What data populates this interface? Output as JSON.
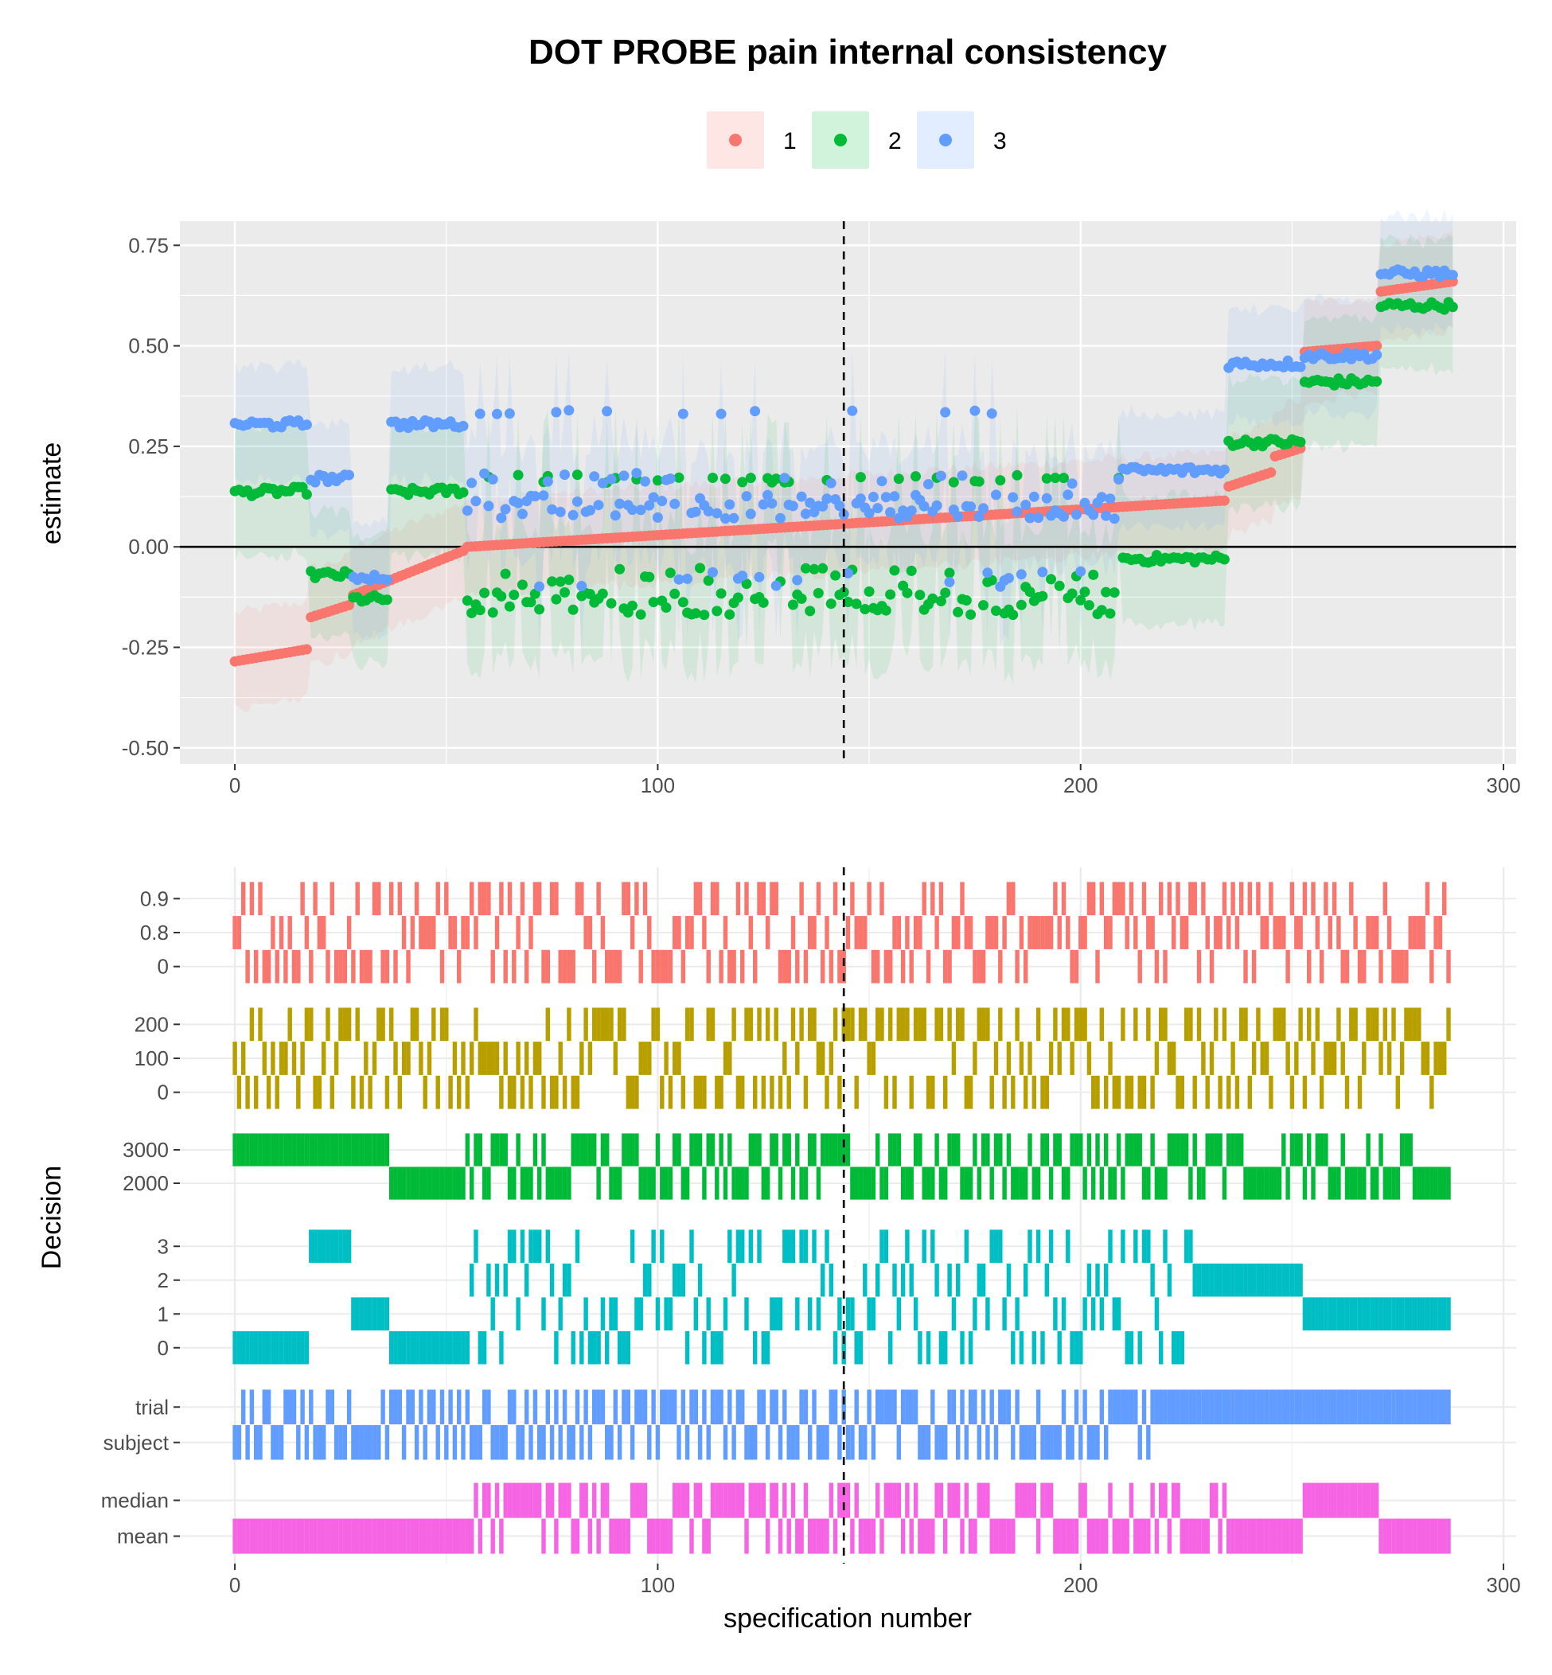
{
  "chart_data": [
    {
      "type": "scatter",
      "title": "DOT PROBE pain internal consistency",
      "xlabel": "",
      "ylabel": "estimate",
      "xlim": [
        -13,
        303
      ],
      "ylim": [
        -0.54,
        0.81
      ],
      "x_ticks": [
        0,
        100,
        200,
        300
      ],
      "y_ticks": [
        0.75,
        0.5,
        0.25,
        0.0,
        -0.25,
        -0.5
      ],
      "y_tick_labels": [
        "0.75",
        "0.50",
        "0.25",
        "0.00",
        "-0.25",
        "-0.50"
      ],
      "reference_lines": {
        "horizontal_y": 0,
        "vertical_dashed_x": 144
      },
      "grid": true,
      "legend": {
        "position": "top",
        "entries": [
          "1",
          "2",
          "3"
        ]
      },
      "colors": {
        "1": "#F8766D",
        "2": "#00BA38",
        "3": "#619CFF"
      },
      "n_specifications": 288,
      "series": [
        {
          "name": "1",
          "note_shape": "sorted ascending; segments",
          "segments": [
            {
              "x": [
                0,
                18
              ],
              "y": [
                -0.285,
                -0.255
              ]
            },
            {
              "x": [
                18,
                28
              ],
              "y": [
                -0.175,
                -0.145
              ]
            },
            {
              "x": [
                28,
                55
              ],
              "y": [
                -0.12,
                -0.01
              ]
            },
            {
              "x": [
                55,
                235
              ],
              "y": [
                0.0,
                0.115
              ]
            },
            {
              "x": [
                235,
                246
              ],
              "y": [
                0.15,
                0.185
              ]
            },
            {
              "x": [
                246,
                253
              ],
              "y": [
                0.225,
                0.245
              ]
            },
            {
              "x": [
                253,
                271
              ],
              "y": [
                0.485,
                0.5
              ]
            },
            {
              "x": [
                271,
                289
              ],
              "y": [
                0.635,
                0.66
              ]
            }
          ]
        },
        {
          "name": "2",
          "segments": [
            {
              "x": [
                0,
                18
              ],
              "y": [
                0.135,
                0.14
              ]
            },
            {
              "x": [
                18,
                28
              ],
              "y": [
                -0.07,
                -0.07
              ]
            },
            {
              "x": [
                28,
                37
              ],
              "y": [
                -0.13,
                -0.13
              ]
            },
            {
              "x": [
                37,
                55
              ],
              "y": [
                0.135,
                0.14
              ]
            },
            {
              "x": [
                55,
                210
              ],
              "y": [
                -0.14,
                -0.14
              ]
            },
            {
              "x": [
                210,
                235
              ],
              "y": [
                -0.03,
                -0.03
              ]
            },
            {
              "x": [
                235,
                253
              ],
              "y": [
                0.26,
                0.26
              ]
            },
            {
              "x": [
                253,
                271
              ],
              "y": [
                0.41,
                0.41
              ]
            },
            {
              "x": [
                271,
                289
              ],
              "y": [
                0.6,
                0.6
              ]
            }
          ]
        },
        {
          "name": "3",
          "segments": [
            {
              "x": [
                0,
                18
              ],
              "y": [
                0.305,
                0.305
              ]
            },
            {
              "x": [
                18,
                28
              ],
              "y": [
                0.17,
                0.17
              ]
            },
            {
              "x": [
                28,
                37
              ],
              "y": [
                -0.075,
                -0.075
              ]
            },
            {
              "x": [
                37,
                55
              ],
              "y": [
                0.305,
                0.305
              ]
            },
            {
              "x": [
                55,
                210
              ],
              "y": [
                0.1,
                0.1
              ]
            },
            {
              "x": [
                210,
                235
              ],
              "y": [
                0.19,
                0.19
              ]
            },
            {
              "x": [
                235,
                253
              ],
              "y": [
                0.455,
                0.455
              ]
            },
            {
              "x": [
                253,
                271
              ],
              "y": [
                0.475,
                0.475
              ]
            },
            {
              "x": [
                271,
                289
              ],
              "y": [
                0.68,
                0.68
              ]
            }
          ]
        }
      ]
    },
    {
      "type": "heatmap",
      "xlabel": "specification number",
      "ylabel": "Decision",
      "xlim": [
        -13,
        303
      ],
      "x_ticks": [
        0,
        100,
        200,
        300
      ],
      "reference_lines": {
        "vertical_dashed_x": 144
      },
      "rows": [
        {
          "name": "a",
          "color": "#F8766D",
          "levels": [
            "0.9",
            "0.8",
            "0"
          ],
          "pattern_period": 3
        },
        {
          "name": "b",
          "color": "#B79F00",
          "levels": [
            "200",
            "100",
            "0"
          ],
          "pattern_period": 3
        },
        {
          "name": "c",
          "color": "#00BA38",
          "levels": [
            "3000",
            "2000"
          ],
          "blocks": [
            {
              "from": 0,
              "to": 37,
              "level": "3000"
            },
            {
              "from": 37,
              "to": 55,
              "level": "2000"
            },
            {
              "from": 55,
              "to": 110,
              "level": "mixed"
            },
            {
              "from": 110,
              "to": 235,
              "level": "mixed"
            },
            {
              "from": 235,
              "to": 253,
              "level": "mixed"
            },
            {
              "from": 253,
              "to": 280,
              "level": "mixed"
            },
            {
              "from": 280,
              "to": 289,
              "level": "2000"
            }
          ]
        },
        {
          "name": "d",
          "color": "#00BFC4",
          "levels": [
            "3",
            "2",
            "1",
            "0"
          ],
          "blocks": [
            {
              "from": 0,
              "to": 18,
              "level": "0"
            },
            {
              "from": 18,
              "to": 28,
              "level": "3"
            },
            {
              "from": 28,
              "to": 37,
              "level": "1"
            },
            {
              "from": 37,
              "to": 55,
              "level": "0"
            },
            {
              "from": 55,
              "to": 140,
              "level": "mixed"
            },
            {
              "from": 140,
              "to": 227,
              "level": "mixed"
            },
            {
              "from": 227,
              "to": 253,
              "level": "2"
            },
            {
              "from": 253,
              "to": 289,
              "level": "1"
            }
          ]
        },
        {
          "name": "e",
          "color": "#619CFF",
          "levels": [
            "trial",
            "subject"
          ],
          "blocks": [
            {
              "from": 0,
              "to": 218,
              "level": "mixed"
            },
            {
              "from": 218,
              "to": 289,
              "level": "trial"
            }
          ]
        },
        {
          "name": "f",
          "color": "#F564E3",
          "levels": [
            "median",
            "mean"
          ],
          "blocks": [
            {
              "from": 0,
              "to": 55,
              "level": "mean"
            },
            {
              "from": 55,
              "to": 235,
              "level": "mixed"
            },
            {
              "from": 235,
              "to": 253,
              "level": "mean"
            },
            {
              "from": 253,
              "to": 271,
              "level": "median"
            },
            {
              "from": 271,
              "to": 289,
              "level": "mean"
            }
          ]
        }
      ]
    }
  ]
}
